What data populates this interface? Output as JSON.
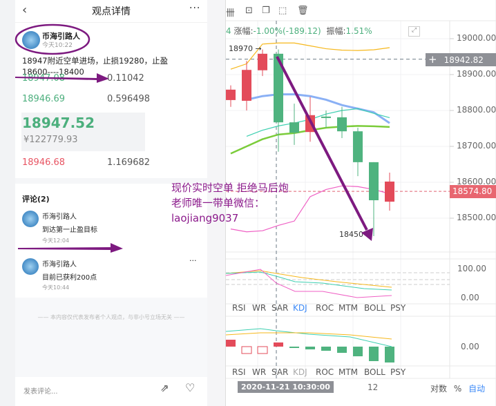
{
  "header": {
    "back_icon": "chevron-left-icon",
    "title": "观点详情",
    "more_icon": "more-icon"
  },
  "post": {
    "author": "币海引路人",
    "time": "今天10:22",
    "content_line1": "18947附近空单进场，止损19280，止盈",
    "content_line2": "18600----18400"
  },
  "orderbook": {
    "rows_top": [
      {
        "price": "18947.08",
        "amount": "0.11042"
      },
      {
        "price": "18946.69",
        "amount": "0.596498"
      }
    ],
    "last_price": "18947.52",
    "last_cny": "¥122779.93",
    "rows_bottom": [
      {
        "price": "18946.68",
        "amount": "1.169682"
      }
    ]
  },
  "comments": {
    "title": "评论(2)",
    "items": [
      {
        "author": "币海引路人",
        "text": "到达第一止盈目标",
        "time": "今天12:04"
      },
      {
        "author": "币海引路人",
        "text": "目前已获利200点",
        "time": "今天10:44"
      }
    ]
  },
  "disclaimer": "本内容仅代表发布者个人观点，与非小号立场无关",
  "footer": {
    "comment_placeholder": "发表评论...",
    "share_icon": "share-icon",
    "like_icon": "heart-icon"
  },
  "overlay": {
    "line1": "现价实时空单  拒绝马后炮",
    "line2": "老师唯一带单微信：",
    "line3": "laojiang9037"
  },
  "chart": {
    "toolbar_icons": [
      "candles-icon",
      "lock-icon",
      "copy-icon",
      "draw-icon",
      "trash-icon"
    ],
    "info_prefix": "4",
    "change_label": "涨幅:",
    "change_value": "-1.00%(-189.12)",
    "amp_label": "振幅:",
    "amp_value": "1.51%",
    "price_ticks": [
      "19000.00",
      "18900.00",
      "18800.00",
      "18700.00",
      "18600.00",
      "18500.00"
    ],
    "crosshair_price": "18942.82",
    "current_price": "18574.80",
    "high_label": "18970",
    "low_label": "18450",
    "indicator_tabs": [
      "RSI",
      "WR",
      "SAR",
      "KDJ",
      "ROC",
      "MTM",
      "BOLL",
      "PSY"
    ],
    "active_tab_1": "KDJ",
    "ind1_ticks": [
      "100.00",
      "0.00"
    ],
    "ind2_ticks": [
      "0.00"
    ],
    "time_label": "2020-11-21 10:30:00",
    "time_tick": "12",
    "bottom_opts": {
      "log": "对数",
      "pct": "%",
      "auto": "自动"
    },
    "colors": {
      "up": "#e34b5a",
      "down": "#4fb37f",
      "accent": "#3d8af7",
      "overlay": "#8b1a8b"
    },
    "candles": [
      [
        18829,
        18870,
        18810,
        18858
      ],
      [
        18827,
        18938,
        18800,
        18913
      ],
      [
        18912,
        18970,
        18896,
        18958
      ],
      [
        18958,
        18970,
        18685,
        18767
      ],
      [
        18767,
        18819,
        18704,
        18738
      ],
      [
        18740,
        18838,
        18713,
        18787
      ],
      [
        18783,
        18800,
        18752,
        18779
      ],
      [
        18781,
        18810,
        18723,
        18742
      ],
      [
        18742,
        18752,
        18617,
        18656
      ],
      [
        18656,
        18656,
        18450,
        18550
      ],
      [
        18546,
        18627,
        18521,
        18602
      ]
    ],
    "boll_upper": [
      18915,
      18930,
      18985,
      18988,
      18988,
      18980,
      18972,
      18968,
      18967,
      18969,
      18975
    ],
    "boll_mid": [
      null,
      18830,
      18840,
      18845,
      18845,
      18840,
      18830,
      18815,
      18805,
      18795,
      18765
    ],
    "ma_green": [
      18680,
      18700,
      18720,
      18733,
      18737,
      18745,
      18752,
      18755,
      18757,
      18756,
      18754
    ],
    "ma_teal": [
      null,
      18728,
      18745,
      18757,
      18765,
      18775,
      18790,
      18800,
      18805,
      18792,
      18780
    ],
    "boll_lower": [
      18470,
      18462,
      18465,
      18480,
      18492,
      18560,
      18580,
      18590,
      18588,
      18580,
      18568
    ]
  }
}
